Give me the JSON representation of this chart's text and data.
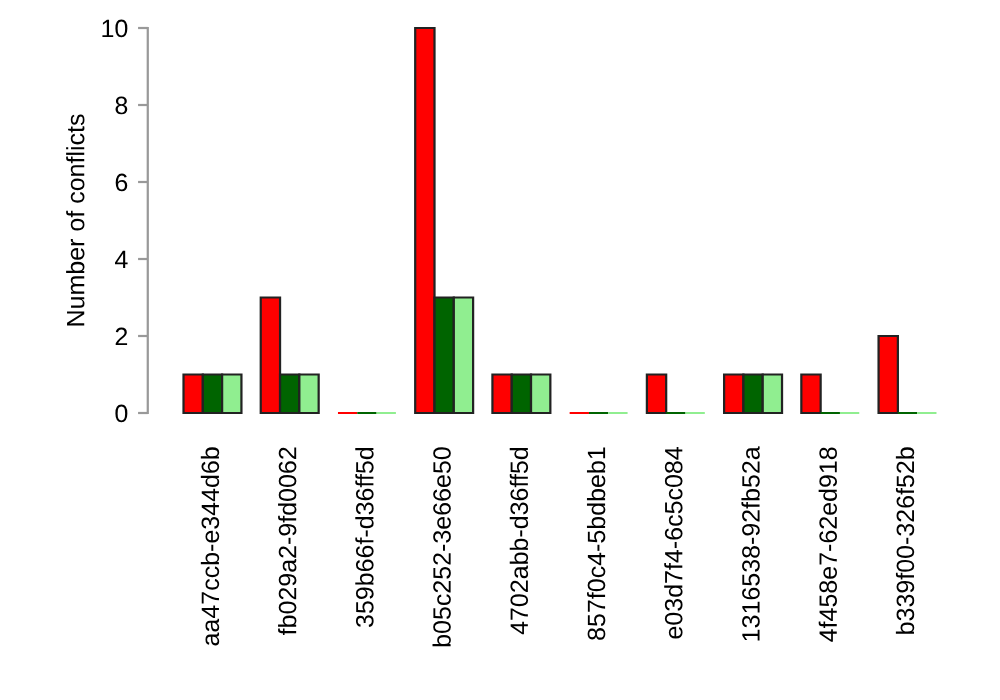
{
  "chart_data": {
    "type": "bar",
    "ylabel": "Number of conflicts",
    "categories": [
      "aa47ccb-e344d6b",
      "fb029a2-9fd0062",
      "359b66f-d36ff5d",
      "b05c252-3e66e50",
      "4702abb-d36ff5d",
      "857f0c4-5bdbeb1",
      "e03d7f4-6c5c084",
      "1316538-92fb52a",
      "4f458e7-62ed918",
      "b339f00-326f52b"
    ],
    "series": [
      {
        "color": "#ff0000",
        "values": [
          1,
          3,
          0,
          10,
          1,
          0,
          1,
          1,
          1,
          2
        ]
      },
      {
        "color": "#006400",
        "values": [
          1,
          1,
          0,
          3,
          1,
          0,
          0,
          1,
          0,
          0
        ]
      },
      {
        "color": "#90ee90",
        "values": [
          1,
          1,
          0,
          3,
          1,
          0,
          0,
          1,
          0,
          0
        ]
      }
    ],
    "ylim": [
      0,
      10
    ],
    "yticks": [
      0,
      2,
      4,
      6,
      8,
      10
    ],
    "grid": false,
    "legend": false
  }
}
